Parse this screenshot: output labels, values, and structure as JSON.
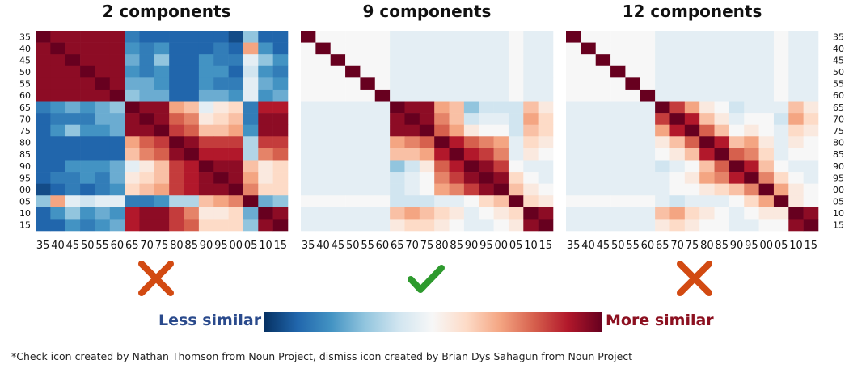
{
  "panels": [
    {
      "title": "2 components",
      "verdict": "cross-icon"
    },
    {
      "title": "9 components",
      "verdict": "check-icon"
    },
    {
      "title": "12 components",
      "verdict": "cross-icon"
    }
  ],
  "legend": {
    "less_label": "Less similar",
    "more_label": "More similar",
    "colors": [
      "#053061",
      "#2166ac",
      "#4393c3",
      "#92c5de",
      "#d1e5f0",
      "#f7f7f7",
      "#fddbc7",
      "#f4a582",
      "#d6604d",
      "#b2182b",
      "#67001f"
    ]
  },
  "footnote": "*Check icon created by Nathan Thomson from Noun Project, dismiss icon created by Brian Dys Sahagun from Noun Project",
  "colors": {
    "check": "#2e9a2e",
    "cross": "#d24a12"
  },
  "chart_data": [
    {
      "type": "heatmap",
      "title": "2 components",
      "categories": [
        "35",
        "40",
        "45",
        "50",
        "55",
        "60",
        "65",
        "70",
        "75",
        "80",
        "85",
        "90",
        "95",
        "00",
        "05",
        "10",
        "15"
      ],
      "value_range": [
        -1,
        1
      ],
      "values": [
        [
          1,
          0.9,
          0.9,
          0.9,
          0.9,
          0.9,
          -0.7,
          -0.8,
          -0.8,
          -0.8,
          -0.8,
          -0.8,
          -0.8,
          -0.9,
          -0.4,
          -0.8,
          -0.8
        ],
        [
          0.9,
          1,
          0.9,
          0.9,
          0.9,
          0.9,
          -0.6,
          -0.7,
          -0.6,
          -0.8,
          -0.8,
          -0.8,
          -0.7,
          -0.8,
          0.4,
          -0.6,
          -0.8
        ],
        [
          0.9,
          0.9,
          1,
          0.9,
          0.9,
          0.9,
          -0.5,
          -0.7,
          -0.4,
          -0.8,
          -0.8,
          -0.6,
          -0.7,
          -0.7,
          -0.1,
          -0.4,
          -0.6
        ],
        [
          0.9,
          0.9,
          0.9,
          1,
          0.9,
          0.9,
          -0.6,
          -0.7,
          -0.6,
          -0.8,
          -0.8,
          -0.6,
          -0.6,
          -0.8,
          -0.2,
          -0.6,
          -0.7
        ],
        [
          0.9,
          0.9,
          0.9,
          0.9,
          1,
          0.9,
          -0.5,
          -0.5,
          -0.6,
          -0.8,
          -0.8,
          -0.6,
          -0.7,
          -0.7,
          -0.1,
          -0.5,
          -0.6
        ],
        [
          0.9,
          0.9,
          0.9,
          0.9,
          0.9,
          1,
          -0.4,
          -0.5,
          -0.5,
          -0.8,
          -0.8,
          -0.5,
          -0.5,
          -0.6,
          -0.1,
          -0.6,
          -0.5
        ],
        [
          -0.7,
          -0.6,
          -0.5,
          -0.6,
          -0.5,
          -0.4,
          1,
          0.9,
          0.9,
          0.4,
          0.3,
          -0.1,
          0.1,
          0.2,
          -0.7,
          0.8,
          0.8
        ],
        [
          -0.8,
          -0.7,
          -0.7,
          -0.7,
          -0.5,
          -0.5,
          0.9,
          1,
          0.9,
          0.6,
          0.5,
          0.1,
          0.2,
          0.3,
          -0.7,
          0.9,
          0.9
        ],
        [
          -0.8,
          -0.6,
          -0.4,
          -0.6,
          -0.6,
          -0.5,
          0.9,
          0.9,
          1,
          0.7,
          0.6,
          0.3,
          0.3,
          0.4,
          -0.6,
          0.9,
          0.9
        ],
        [
          -0.8,
          -0.8,
          -0.8,
          -0.8,
          -0.8,
          -0.8,
          0.4,
          0.6,
          0.7,
          1,
          0.9,
          0.7,
          0.7,
          0.7,
          -0.3,
          0.7,
          0.7
        ],
        [
          -0.8,
          -0.8,
          -0.8,
          -0.8,
          -0.8,
          -0.8,
          0.3,
          0.5,
          0.6,
          0.9,
          1,
          0.8,
          0.8,
          0.8,
          -0.3,
          0.5,
          0.6
        ],
        [
          -0.8,
          -0.8,
          -0.6,
          -0.6,
          -0.6,
          -0.5,
          -0.1,
          0.1,
          0.3,
          0.7,
          0.8,
          1,
          0.9,
          0.9,
          0.3,
          0.1,
          0.2
        ],
        [
          -0.8,
          -0.7,
          -0.7,
          -0.6,
          -0.7,
          -0.5,
          0.1,
          0.2,
          0.3,
          0.7,
          0.8,
          0.9,
          1,
          0.9,
          0.4,
          0.1,
          0.2
        ],
        [
          -0.9,
          -0.8,
          -0.7,
          -0.8,
          -0.7,
          -0.6,
          0.2,
          0.3,
          0.4,
          0.7,
          0.8,
          0.9,
          0.9,
          1,
          0.5,
          0.2,
          0.2
        ],
        [
          -0.4,
          0.4,
          -0.1,
          -0.2,
          -0.1,
          -0.1,
          -0.7,
          -0.7,
          -0.6,
          -0.3,
          -0.3,
          0.3,
          0.4,
          0.5,
          1,
          -0.5,
          -0.4
        ],
        [
          -0.8,
          -0.6,
          -0.4,
          -0.6,
          -0.5,
          -0.6,
          0.8,
          0.9,
          0.9,
          0.7,
          0.5,
          0.1,
          0.1,
          0.2,
          -0.5,
          1,
          0.9
        ],
        [
          -0.8,
          -0.8,
          -0.6,
          -0.7,
          -0.6,
          -0.5,
          0.8,
          0.9,
          0.9,
          0.7,
          0.6,
          0.2,
          0.2,
          0.2,
          -0.4,
          0.9,
          1
        ]
      ]
    },
    {
      "type": "heatmap",
      "title": "9 components",
      "categories": [
        "35",
        "40",
        "45",
        "50",
        "55",
        "60",
        "65",
        "70",
        "75",
        "80",
        "85",
        "90",
        "95",
        "00",
        "05",
        "10",
        "15"
      ],
      "value_range": [
        -1,
        1
      ],
      "values": [
        [
          1,
          0,
          0,
          0,
          0,
          0,
          -0.1,
          -0.1,
          -0.1,
          -0.1,
          -0.1,
          -0.1,
          -0.1,
          -0.1,
          0,
          -0.1,
          -0.1
        ],
        [
          0,
          1,
          0,
          0,
          0,
          0,
          -0.1,
          -0.1,
          -0.1,
          -0.1,
          -0.1,
          -0.1,
          -0.1,
          -0.1,
          0,
          -0.1,
          -0.1
        ],
        [
          0,
          0,
          1,
          0,
          0,
          0,
          -0.1,
          -0.1,
          -0.1,
          -0.1,
          -0.1,
          -0.1,
          -0.1,
          -0.1,
          0,
          -0.1,
          -0.1
        ],
        [
          0,
          0,
          0,
          1,
          0,
          0,
          -0.1,
          -0.1,
          -0.1,
          -0.1,
          -0.1,
          -0.1,
          -0.1,
          -0.1,
          0,
          -0.1,
          -0.1
        ],
        [
          0,
          0,
          0,
          0,
          1,
          0,
          -0.1,
          -0.1,
          -0.1,
          -0.1,
          -0.1,
          -0.1,
          -0.1,
          -0.1,
          0,
          -0.1,
          -0.1
        ],
        [
          0,
          0,
          0,
          0,
          0,
          1,
          -0.1,
          -0.1,
          -0.1,
          -0.1,
          -0.1,
          -0.1,
          -0.1,
          -0.1,
          0,
          -0.1,
          -0.1
        ],
        [
          -0.1,
          -0.1,
          -0.1,
          -0.1,
          -0.1,
          -0.1,
          1,
          0.9,
          0.9,
          0.4,
          0.3,
          -0.4,
          -0.2,
          -0.2,
          -0.2,
          0.3,
          0.1
        ],
        [
          -0.1,
          -0.1,
          -0.1,
          -0.1,
          -0.1,
          -0.1,
          0.9,
          1,
          0.9,
          0.5,
          0.3,
          -0.2,
          -0.1,
          -0.1,
          -0.2,
          0.4,
          0.2
        ],
        [
          -0.1,
          -0.1,
          -0.1,
          -0.1,
          -0.1,
          -0.1,
          0.9,
          0.9,
          1,
          0.6,
          0.4,
          0.1,
          0,
          0,
          -0.2,
          0.3,
          0.2
        ],
        [
          -0.1,
          -0.1,
          -0.1,
          -0.1,
          -0.1,
          -0.1,
          0.4,
          0.5,
          0.6,
          1,
          0.8,
          0.6,
          0.5,
          0.4,
          -0.1,
          0.2,
          0.1
        ],
        [
          -0.1,
          -0.1,
          -0.1,
          -0.1,
          -0.1,
          -0.1,
          0.3,
          0.3,
          0.4,
          0.8,
          1,
          0.8,
          0.7,
          0.5,
          -0.1,
          0.1,
          0
        ],
        [
          -0.1,
          -0.1,
          -0.1,
          -0.1,
          -0.1,
          -0.1,
          -0.4,
          -0.2,
          0.1,
          0.6,
          0.8,
          1,
          0.9,
          0.7,
          0,
          -0.1,
          -0.1
        ],
        [
          -0.1,
          -0.1,
          -0.1,
          -0.1,
          -0.1,
          -0.1,
          -0.2,
          -0.1,
          0,
          0.5,
          0.7,
          0.9,
          1,
          0.9,
          0.2,
          0,
          -0.1
        ],
        [
          -0.1,
          -0.1,
          -0.1,
          -0.1,
          -0.1,
          -0.1,
          -0.2,
          -0.1,
          0,
          0.4,
          0.5,
          0.7,
          0.9,
          1,
          0.3,
          0.1,
          0
        ],
        [
          0,
          0,
          0,
          0,
          0,
          0,
          -0.2,
          -0.2,
          -0.2,
          -0.1,
          -0.1,
          0,
          0.2,
          0.3,
          1,
          0.2,
          0.1
        ],
        [
          -0.1,
          -0.1,
          -0.1,
          -0.1,
          -0.1,
          -0.1,
          0.3,
          0.4,
          0.3,
          0.2,
          0.1,
          -0.1,
          0,
          0.1,
          0.2,
          1,
          0.9
        ],
        [
          -0.1,
          -0.1,
          -0.1,
          -0.1,
          -0.1,
          -0.1,
          0.1,
          0.2,
          0.2,
          0.1,
          0,
          -0.1,
          -0.1,
          0,
          0.1,
          0.9,
          1
        ]
      ]
    },
    {
      "type": "heatmap",
      "title": "12 components",
      "categories": [
        "35",
        "40",
        "45",
        "50",
        "55",
        "60",
        "65",
        "70",
        "75",
        "80",
        "85",
        "90",
        "95",
        "00",
        "05",
        "10",
        "15"
      ],
      "value_range": [
        -1,
        1
      ],
      "values": [
        [
          1,
          0,
          0,
          0,
          0,
          0,
          -0.1,
          -0.1,
          -0.1,
          -0.1,
          -0.1,
          -0.1,
          -0.1,
          -0.1,
          0,
          -0.1,
          -0.1
        ],
        [
          0,
          1,
          0,
          0,
          0,
          0,
          -0.1,
          -0.1,
          -0.1,
          -0.1,
          -0.1,
          -0.1,
          -0.1,
          -0.1,
          0,
          -0.1,
          -0.1
        ],
        [
          0,
          0,
          1,
          0,
          0,
          0,
          -0.1,
          -0.1,
          -0.1,
          -0.1,
          -0.1,
          -0.1,
          -0.1,
          -0.1,
          0,
          -0.1,
          -0.1
        ],
        [
          0,
          0,
          0,
          1,
          0,
          0,
          -0.1,
          -0.1,
          -0.1,
          -0.1,
          -0.1,
          -0.1,
          -0.1,
          -0.1,
          0,
          -0.1,
          -0.1
        ],
        [
          0,
          0,
          0,
          0,
          1,
          0,
          -0.1,
          -0.1,
          -0.1,
          -0.1,
          -0.1,
          -0.1,
          -0.1,
          -0.1,
          0,
          -0.1,
          -0.1
        ],
        [
          0,
          0,
          0,
          0,
          0,
          1,
          -0.1,
          -0.1,
          -0.1,
          -0.1,
          -0.1,
          -0.1,
          -0.1,
          -0.1,
          0,
          -0.1,
          -0.1
        ],
        [
          -0.1,
          -0.1,
          -0.1,
          -0.1,
          -0.1,
          -0.1,
          1,
          0.7,
          0.4,
          0.1,
          0,
          -0.2,
          -0.1,
          -0.1,
          -0.1,
          0.3,
          0.1
        ],
        [
          -0.1,
          -0.1,
          -0.1,
          -0.1,
          -0.1,
          -0.1,
          0.7,
          1,
          0.8,
          0.3,
          0.1,
          -0.1,
          0,
          0,
          -0.2,
          0.4,
          0.2
        ],
        [
          -0.1,
          -0.1,
          -0.1,
          -0.1,
          -0.1,
          -0.1,
          0.4,
          0.8,
          1,
          0.6,
          0.3,
          0,
          0.1,
          0,
          -0.1,
          0.2,
          0.1
        ],
        [
          -0.1,
          -0.1,
          -0.1,
          -0.1,
          -0.1,
          -0.1,
          0.1,
          0.3,
          0.6,
          1,
          0.8,
          0.3,
          0.4,
          0.1,
          -0.1,
          0.1,
          0
        ],
        [
          -0.1,
          -0.1,
          -0.1,
          -0.1,
          -0.1,
          -0.1,
          0,
          0.1,
          0.3,
          0.8,
          1,
          0.6,
          0.5,
          0.2,
          -0.1,
          0,
          0
        ],
        [
          -0.1,
          -0.1,
          -0.1,
          -0.1,
          -0.1,
          -0.1,
          -0.2,
          -0.1,
          0,
          0.3,
          0.6,
          1,
          0.8,
          0.3,
          0,
          -0.1,
          -0.1
        ],
        [
          -0.1,
          -0.1,
          -0.1,
          -0.1,
          -0.1,
          -0.1,
          -0.1,
          0,
          0.1,
          0.4,
          0.5,
          0.8,
          1,
          0.5,
          0.2,
          0,
          -0.1
        ],
        [
          -0.1,
          -0.1,
          -0.1,
          -0.1,
          -0.1,
          -0.1,
          -0.1,
          0,
          0,
          0.1,
          0.2,
          0.3,
          0.5,
          1,
          0.4,
          0.1,
          0
        ],
        [
          0,
          0,
          0,
          0,
          0,
          0,
          -0.1,
          -0.2,
          -0.1,
          -0.1,
          -0.1,
          0,
          0.2,
          0.4,
          1,
          0.1,
          0
        ],
        [
          -0.1,
          -0.1,
          -0.1,
          -0.1,
          -0.1,
          -0.1,
          0.3,
          0.4,
          0.2,
          0.1,
          0,
          -0.1,
          0,
          0.1,
          0.1,
          1,
          0.9
        ],
        [
          -0.1,
          -0.1,
          -0.1,
          -0.1,
          -0.1,
          -0.1,
          0.1,
          0.2,
          0.1,
          0,
          0,
          -0.1,
          -0.1,
          0,
          0,
          0.9,
          1
        ]
      ]
    }
  ]
}
